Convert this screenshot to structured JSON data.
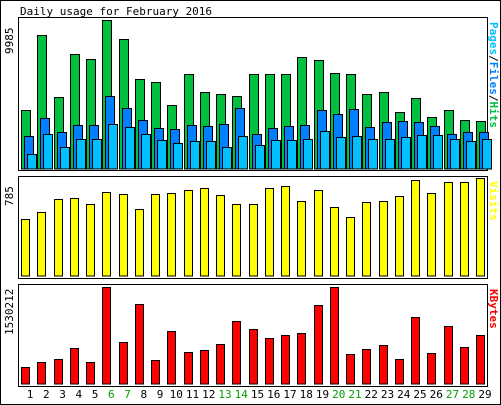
{
  "chart_data": {
    "type": "bar",
    "title": "Daily usage for February 2016",
    "categories": [
      "1",
      "2",
      "3",
      "4",
      "5",
      "6",
      "7",
      "8",
      "9",
      "10",
      "11",
      "12",
      "13",
      "14",
      "15",
      "16",
      "17",
      "18",
      "19",
      "20",
      "21",
      "22",
      "23",
      "24",
      "25",
      "26",
      "27",
      "28",
      "29"
    ],
    "weekend_days": [
      "6",
      "7",
      "13",
      "14",
      "20",
      "21",
      "27",
      "28"
    ],
    "colors": {
      "hits": "#00c040",
      "files": "#0080ff",
      "pages": "#00c0ff",
      "visits": "#ffff00",
      "kbytes": "#ff0000",
      "weekday_label": "#000000",
      "weekend_label": "#00a000"
    },
    "panels": [
      {
        "id": "top",
        "ymax_label": "9985",
        "ylim": [
          0,
          9985
        ],
        "axis_label_parts": [
          {
            "text": "Pages",
            "color": "#00c0ff"
          },
          {
            "text": "/",
            "color": "#000000"
          },
          {
            "text": "Files",
            "color": "#0080ff"
          },
          {
            "text": "/",
            "color": "#000000"
          },
          {
            "text": "Hits",
            "color": "#00c040"
          }
        ],
        "series": [
          {
            "name": "Hits",
            "values": [
              3940,
              8980,
              4800,
              7680,
              7370,
              9985,
              8740,
              6000,
              5850,
              4280,
              6370,
              5180,
              5030,
              4890,
              6390,
              6380,
              6360,
              7480,
              7310,
              6440,
              6380,
              5000,
              5150,
              3810,
              4780,
              3500,
              3980,
              3300,
              3220
            ]
          },
          {
            "name": "Files",
            "values": [
              2200,
              3450,
              2470,
              2940,
              2930,
              4920,
              4070,
              3310,
              2740,
              2690,
              2920,
              2910,
              2990,
              4070,
              2360,
              2750,
              2880,
              2950,
              3950,
              3690,
              3990,
              2800,
              3120,
              3240,
              3140,
              2910,
              2350,
              2490,
              2460
            ]
          },
          {
            "name": "Pages",
            "values": [
              1020,
              2330,
              1460,
              1980,
              1990,
              3010,
              2810,
              2350,
              1920,
              1720,
              1870,
              1900,
              1480,
              2240,
              1600,
              1920,
              1940,
              2010,
              2550,
              2120,
              2240,
              2020,
              2010,
              2150,
              2290,
              2300,
              2020,
              1850,
              1980
            ]
          }
        ]
      },
      {
        "id": "mid",
        "ymax_label": "785",
        "ylim": [
          0,
          785
        ],
        "axis_label_parts": [
          {
            "text": "Visits",
            "color": "#ffff00"
          }
        ],
        "series": [
          {
            "name": "Visits",
            "values": [
              465,
              520,
              625,
              630,
              585,
              680,
              660,
              540,
              665,
              675,
              700,
              715,
              655,
              580,
              585,
              710,
              725,
              605,
              700,
              555,
              480,
              597,
              610,
              650,
              775,
              670,
              760,
              760,
              790
            ]
          }
        ]
      },
      {
        "id": "bot",
        "ymax_label": "1530212",
        "ylim": [
          0,
          1530212
        ],
        "axis_label_parts": [
          {
            "text": "KBytes",
            "color": "#ff0000"
          }
        ],
        "series": [
          {
            "name": "KBytes",
            "values": [
              265000,
              340000,
              392000,
              575000,
              340000,
              1530000,
              660000,
              1260000,
              380000,
              830000,
              500000,
              530000,
              630000,
              1000000,
              860000,
              720000,
              780000,
              800000,
              1250000,
              1530000,
              480000,
              550000,
              610000,
              390000,
              1060000,
              490000,
              910000,
              580000,
              770000
            ]
          }
        ]
      }
    ]
  }
}
